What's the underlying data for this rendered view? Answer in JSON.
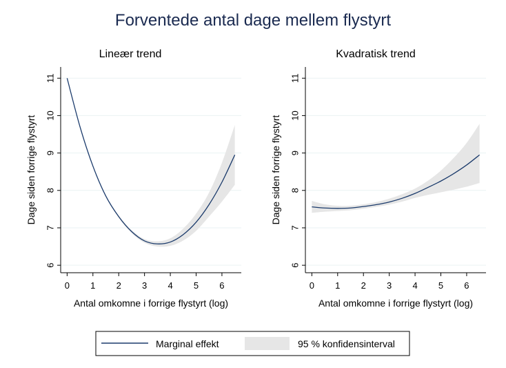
{
  "title": "Forventede antal dage mellem flystyrt",
  "colors": {
    "line": "#1a3a6b",
    "band": "#e6e6e6",
    "grid": "#eaf2f3",
    "axis": "#000000"
  },
  "chart_data": [
    {
      "type": "line",
      "title": "Lineær trend",
      "xlabel": "Antal omkomne i forrige flystyrt (log)",
      "ylabel": "Dage siden forrige flystyrt",
      "xlim": [
        -0.25,
        6.75
      ],
      "ylim": [
        5.8,
        11.3
      ],
      "xticks": [
        "0",
        "1",
        "2",
        "3",
        "4",
        "5",
        "6"
      ],
      "yticks": [
        "6",
        "7",
        "8",
        "9",
        "10",
        "11"
      ],
      "grid": true,
      "series": [
        {
          "name": "Marginal effekt",
          "x": [
            0,
            0.5,
            1,
            1.5,
            2,
            2.5,
            3,
            3.5,
            4,
            4.5,
            5,
            5.5,
            6,
            6.5
          ],
          "y": [
            11.0,
            9.7,
            8.65,
            7.85,
            7.3,
            6.9,
            6.65,
            6.57,
            6.62,
            6.82,
            7.15,
            7.62,
            8.22,
            8.95
          ]
        }
      ],
      "ci": {
        "name": "95 % konfidensinterval",
        "x": [
          0,
          0.5,
          1,
          1.5,
          2,
          2.5,
          3,
          3.5,
          4,
          4.5,
          5,
          5.5,
          6,
          6.5
        ],
        "lower": [
          10.97,
          9.68,
          8.63,
          7.83,
          7.27,
          6.86,
          6.6,
          6.5,
          6.52,
          6.66,
          6.92,
          7.3,
          7.7,
          8.15
        ],
        "upper": [
          11.03,
          9.72,
          8.67,
          7.87,
          7.33,
          6.94,
          6.7,
          6.64,
          6.72,
          6.98,
          7.38,
          7.94,
          8.74,
          9.75
        ]
      }
    },
    {
      "type": "line",
      "title": "Kvadratisk trend",
      "xlabel": "Antal omkomne i forrige flystyrt (log)",
      "ylabel": "Dage siden forrige flystyrt",
      "xlim": [
        -0.25,
        6.75
      ],
      "ylim": [
        5.8,
        11.3
      ],
      "xticks": [
        "0",
        "1",
        "2",
        "3",
        "4",
        "5",
        "6"
      ],
      "yticks": [
        "6",
        "7",
        "8",
        "9",
        "10",
        "11"
      ],
      "grid": true,
      "series": [
        {
          "name": "Marginal effekt",
          "x": [
            0,
            0.5,
            1,
            1.5,
            2,
            2.5,
            3,
            3.5,
            4,
            4.5,
            5,
            5.5,
            6,
            6.5
          ],
          "y": [
            7.56,
            7.53,
            7.52,
            7.53,
            7.57,
            7.62,
            7.69,
            7.79,
            7.92,
            8.08,
            8.25,
            8.45,
            8.68,
            8.95
          ]
        }
      ],
      "ci": {
        "name": "95 % konfidensinterval",
        "x": [
          0,
          0.5,
          1,
          1.5,
          2,
          2.5,
          3,
          3.5,
          4,
          4.5,
          5,
          5.5,
          6,
          6.5
        ],
        "lower": [
          7.4,
          7.43,
          7.45,
          7.47,
          7.51,
          7.56,
          7.62,
          7.7,
          7.8,
          7.88,
          7.95,
          8.02,
          8.1,
          8.2
        ],
        "upper": [
          7.72,
          7.63,
          7.59,
          7.59,
          7.63,
          7.69,
          7.78,
          7.9,
          8.05,
          8.26,
          8.53,
          8.87,
          9.27,
          9.78
        ]
      }
    }
  ],
  "legend": {
    "line_label": "Marginal effekt",
    "band_label": "95 % konfidensinterval"
  }
}
